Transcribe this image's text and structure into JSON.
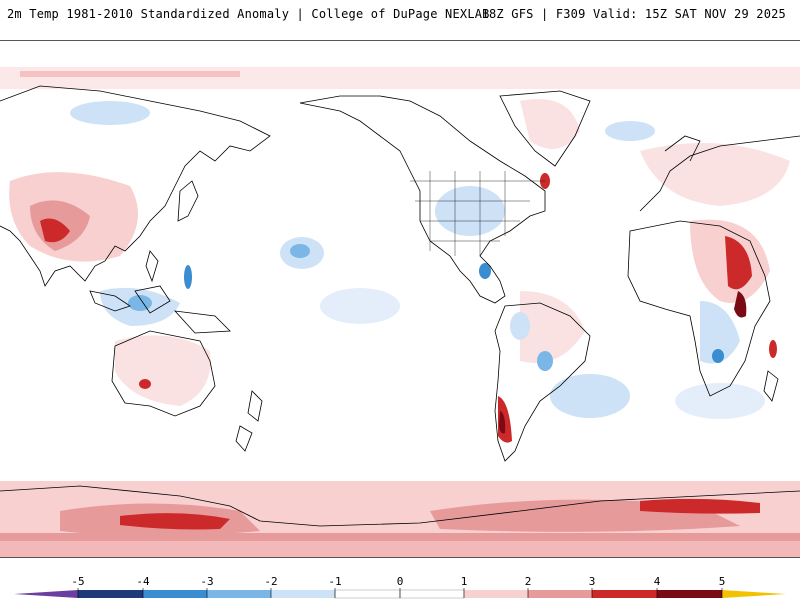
{
  "header": {
    "title_left": "2m Temp 1981-2010 Standardized Anomaly | College of DuPage NEXLAB",
    "title_right": "18Z GFS | F309 Valid: 15Z SAT NOV 29 2025"
  },
  "map": {
    "projection": "equirectangular",
    "center_longitude": "180 (Pacific-centered)",
    "fields": "2m temperature standardized anomaly (sigma)",
    "land_color": "none (outlined only)",
    "outline_color": "#000000"
  },
  "colorbar": {
    "labels": [
      "-5",
      "-4",
      "-3",
      "-2",
      "-1",
      "0",
      "1",
      "2",
      "3",
      "4",
      "5"
    ],
    "segments": [
      {
        "range": "< -5",
        "color": "#6a3fa0"
      },
      {
        "range": "-5 to -4",
        "color": "#1f3a78"
      },
      {
        "range": "-4 to -3",
        "color": "#3a8dd0"
      },
      {
        "range": "-3 to -2",
        "color": "#7ab6e6"
      },
      {
        "range": "-2 to -1",
        "color": "#cde2f6"
      },
      {
        "range": "-1 to 0",
        "color": "#ffffff"
      },
      {
        "range": "0 to 1",
        "color": "#ffffff"
      },
      {
        "range": "1 to 2",
        "color": "#f8d0d0"
      },
      {
        "range": "2 to 3",
        "color": "#e79a9a"
      },
      {
        "range": "3 to 4",
        "color": "#cc2a2a"
      },
      {
        "range": "4 to 5",
        "color": "#7a0a14"
      },
      {
        "range": "> 5",
        "color": "#f2c200"
      }
    ]
  }
}
